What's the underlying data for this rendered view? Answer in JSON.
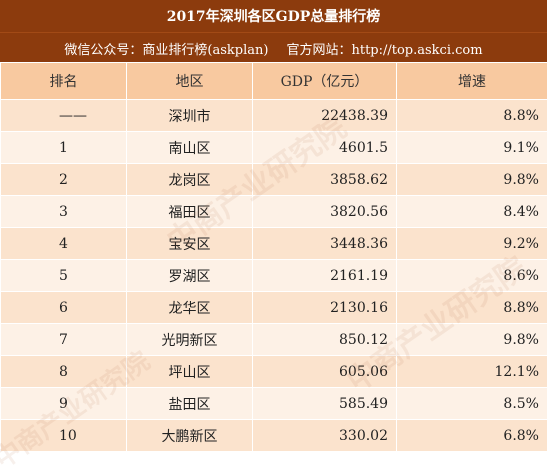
{
  "title": "2017年深圳各区GDP总量排行榜",
  "subtitle": {
    "wechat": "微信公众号：商业排行榜(askplan)",
    "website": "官方网站：http://top.askci.com"
  },
  "table": {
    "headers": [
      "排名",
      "地区",
      "GDP（亿元）",
      "增速"
    ],
    "rows": [
      {
        "rank": "——",
        "region": "深圳市",
        "gdp": "22438.39",
        "growth": "8.8%"
      },
      {
        "rank": "1",
        "region": "南山区",
        "gdp": "4601.5",
        "growth": "9.1%"
      },
      {
        "rank": "2",
        "region": "龙岗区",
        "gdp": "3858.62",
        "growth": "9.8%"
      },
      {
        "rank": "3",
        "region": "福田区",
        "gdp": "3820.56",
        "growth": "8.4%"
      },
      {
        "rank": "4",
        "region": "宝安区",
        "gdp": "3448.36",
        "growth": "9.2%"
      },
      {
        "rank": "5",
        "region": "罗湖区",
        "gdp": "2161.19",
        "growth": "8.6%"
      },
      {
        "rank": "6",
        "region": "龙华区",
        "gdp": "2130.16",
        "growth": "8.8%"
      },
      {
        "rank": "7",
        "region": "光明新区",
        "gdp": "850.12",
        "growth": "9.8%"
      },
      {
        "rank": "8",
        "region": "坪山区",
        "gdp": "605.06",
        "growth": "12.1%"
      },
      {
        "rank": "9",
        "region": "盐田区",
        "gdp": "585.49",
        "growth": "8.5%"
      },
      {
        "rank": "10",
        "region": "大鹏新区",
        "gdp": "330.02",
        "growth": "6.8%"
      }
    ]
  },
  "watermark": "中商产业研究院",
  "colors": {
    "title_bg": "#8c3b0d",
    "header_bg": "#f8c9a0",
    "row_odd": "#fbe3cd",
    "row_even": "#fdf1e6"
  }
}
